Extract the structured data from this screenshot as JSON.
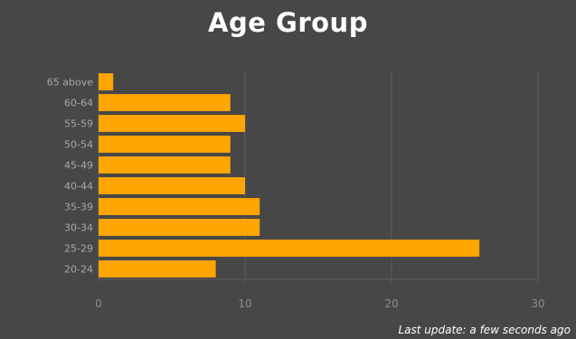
{
  "chart_data": {
    "type": "bar",
    "orientation": "horizontal",
    "title": "Age Group",
    "categories": [
      "65 above",
      "60-64",
      "55-59",
      "50-54",
      "45-49",
      "40-44",
      "35-39",
      "30-34",
      "25-29",
      "20-24"
    ],
    "values": [
      1,
      9,
      10,
      9,
      9,
      10,
      11,
      11,
      26,
      8
    ],
    "xlim": [
      0,
      30
    ],
    "xticks": [
      "0",
      "10",
      "20",
      "30"
    ],
    "grid": true,
    "colors": {
      "bar": "#FFA500",
      "background": "#474747",
      "grid": "#5c5c5c"
    }
  },
  "footer": {
    "last_update": "Last update: a few seconds ago"
  }
}
